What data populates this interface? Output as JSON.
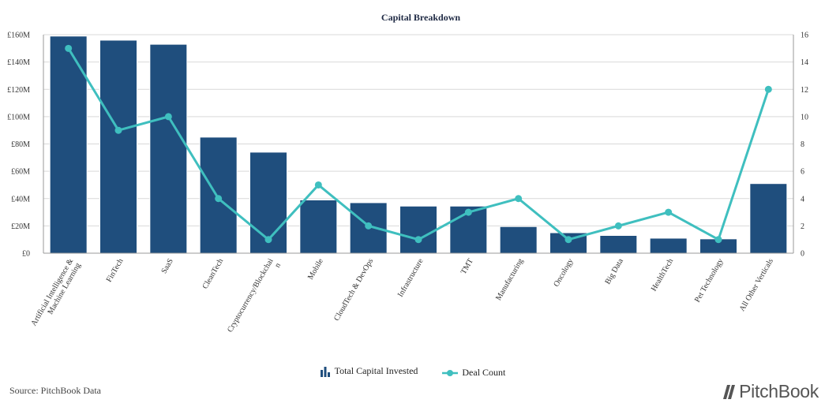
{
  "source": "Source: PitchBook Data",
  "brand": {
    "name": "PitchBook"
  },
  "chart_data": {
    "type": "bar+line",
    "title": "Capital Breakdown",
    "categories": [
      [
        "Artificial Intelligence &",
        "Machine Learning"
      ],
      [
        "FinTech"
      ],
      [
        "SaaS"
      ],
      [
        "CleanTech"
      ],
      [
        "Cryptocurrency/Blockchai",
        "n"
      ],
      [
        "Mobile"
      ],
      [
        "CloudTech & DevOps"
      ],
      [
        "Infrastructure"
      ],
      [
        "TMT"
      ],
      [
        "Manufacturing"
      ],
      [
        "Oncology"
      ],
      [
        "Big Data"
      ],
      [
        "HealthTech"
      ],
      [
        "Pet Technology"
      ],
      [
        "All Other Verticals"
      ]
    ],
    "series": [
      {
        "name": "Total Capital Invested",
        "type": "bar",
        "axis": "left",
        "color": "#1f4e7d",
        "values": [
          159,
          156,
          153,
          85,
          74,
          39,
          37,
          34.5,
          34.5,
          19.5,
          15,
          13,
          11,
          10.5,
          51
        ]
      },
      {
        "name": "Deal Count",
        "type": "line",
        "axis": "right",
        "color": "#3fbfbf",
        "values": [
          15,
          9,
          10,
          4,
          1,
          5,
          2,
          1,
          3,
          4,
          1,
          2,
          3,
          1,
          12
        ]
      }
    ],
    "y_left": {
      "min": 0,
      "max": 160,
      "step": 20,
      "tick_labels": [
        "£0",
        "£20M",
        "£40M",
        "£60M",
        "£80M",
        "£100M",
        "£120M",
        "£140M",
        "£160M"
      ]
    },
    "y_right": {
      "min": 0,
      "max": 16,
      "step": 2,
      "tick_labels": [
        "0",
        "2",
        "4",
        "6",
        "8",
        "10",
        "12",
        "14",
        "16"
      ]
    },
    "grid": true,
    "legend_position": "bottom"
  }
}
